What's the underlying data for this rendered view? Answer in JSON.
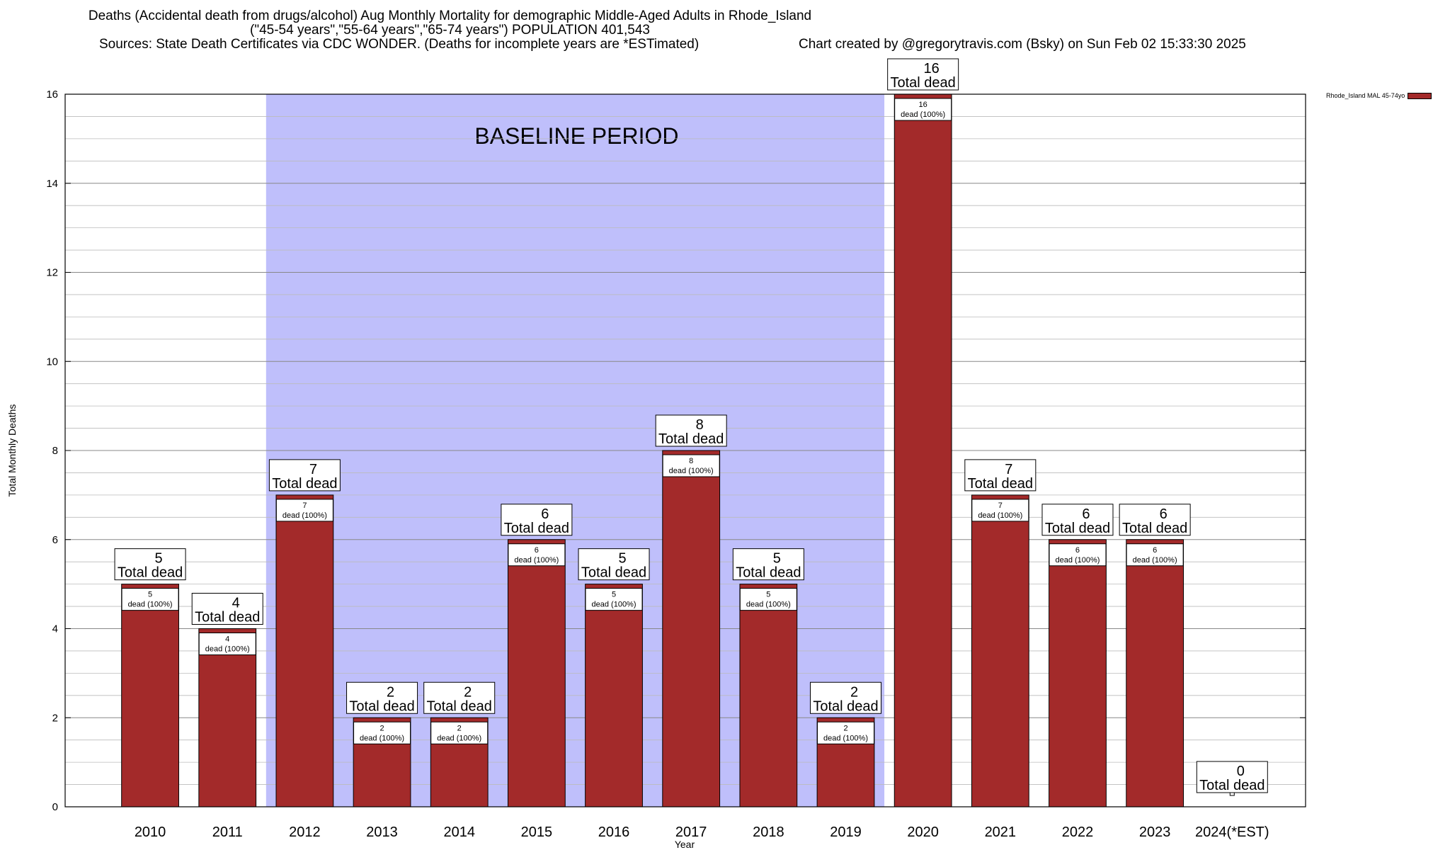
{
  "title": {
    "line1": "Deaths (Accidental death from drugs/alcohol) Aug Monthly Mortality for demographic Middle-Aged Adults in Rhode_Island",
    "line2": "(\"45-54 years\",\"55-64 years\",\"65-74 years\") POPULATION 401,543",
    "line3": "Sources: State Death Certificates via CDC WONDER. (Deaths for incomplete years are *ESTimated)",
    "credit": "Chart created by @gregorytravis.com (Bsky) on Sun Feb 02 15:33:30 2025"
  },
  "legend": {
    "label": "Rhode_Island MAL 45-74yo",
    "color": "#a32a2a"
  },
  "colors": {
    "bar": "#a32a2a",
    "baseline": "#bfbffb"
  },
  "chart_data": {
    "type": "bar",
    "categories": [
      "2010",
      "2011",
      "2012",
      "2013",
      "2014",
      "2015",
      "2016",
      "2017",
      "2018",
      "2019",
      "2020",
      "2021",
      "2022",
      "2023",
      "2024(*EST)"
    ],
    "series": [
      {
        "name": "Rhode_Island MAL 45-74yo",
        "values": [
          5,
          4,
          7,
          2,
          2,
          6,
          5,
          8,
          5,
          2,
          16,
          7,
          6,
          6,
          0
        ]
      }
    ],
    "total_label": "Total dead",
    "inner_label": "dead (100%)",
    "baseline_label": "BASELINE PERIOD",
    "baseline_range": [
      "2012",
      "2019"
    ],
    "xlabel": "Year",
    "ylabel": "Total Monthly Deaths",
    "ylim": [
      0,
      16
    ],
    "yticks": [
      0,
      2,
      4,
      6,
      8,
      10,
      12,
      14,
      16
    ],
    "grid": true
  }
}
